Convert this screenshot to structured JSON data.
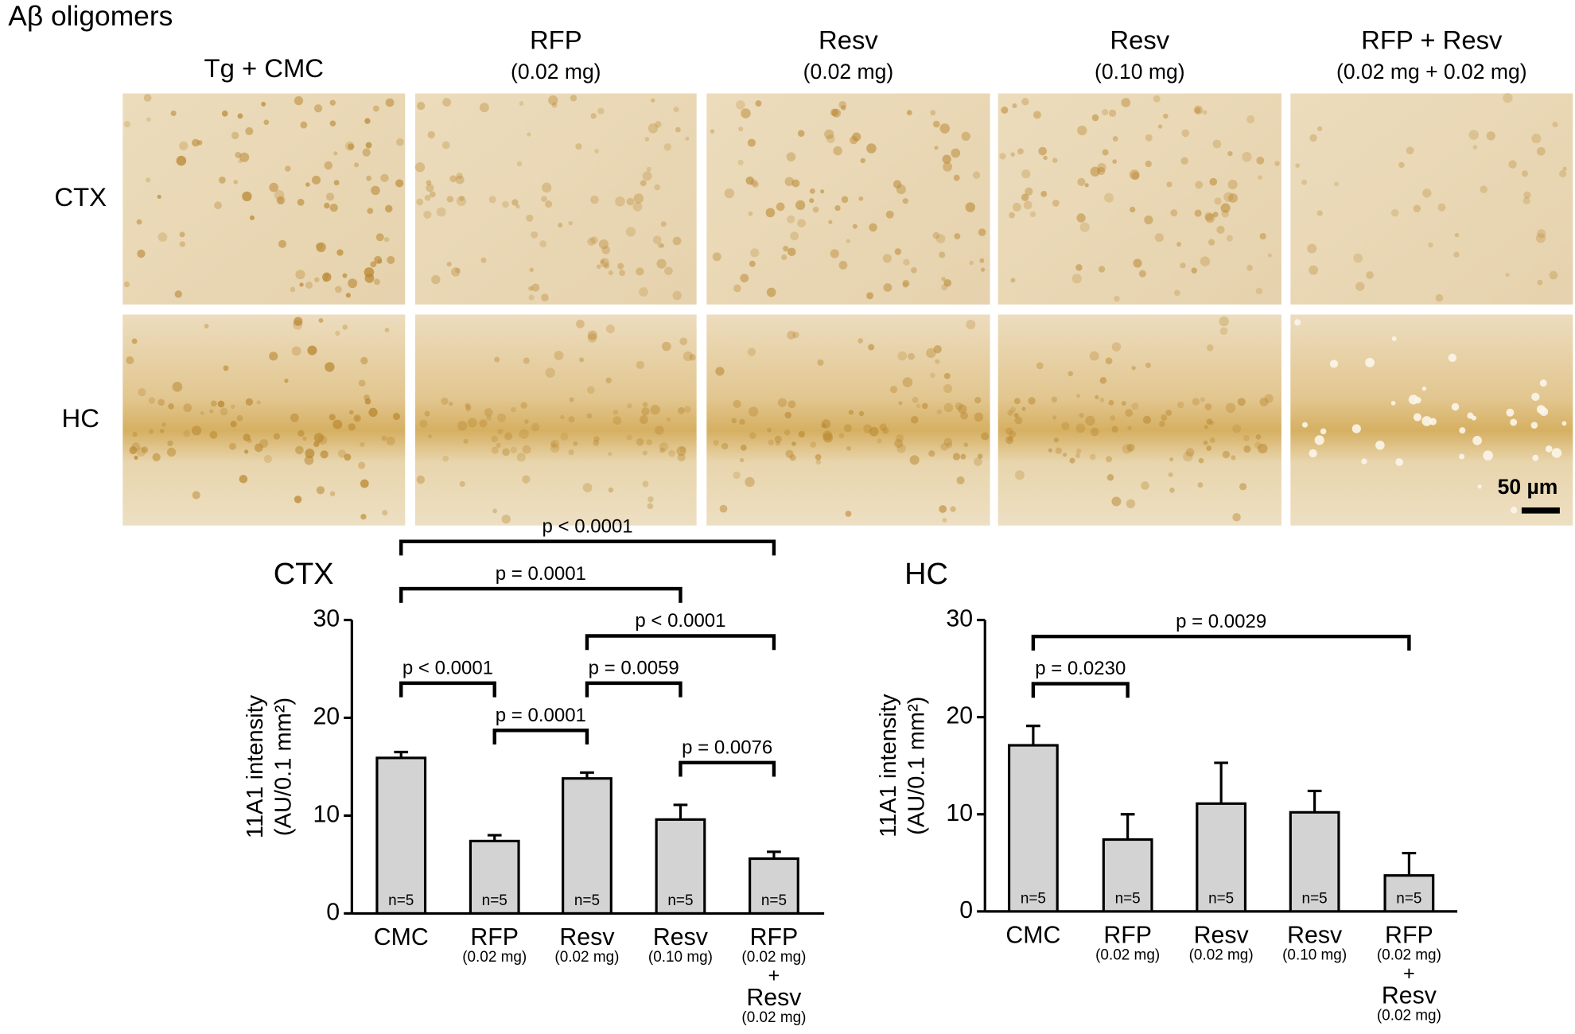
{
  "figure_title": "Aβ oligomers",
  "micrographs": {
    "columns": [
      [
        "Tg + CMC"
      ],
      [
        "RFP",
        "(0.02 mg)"
      ],
      [
        "Resv",
        "(0.02 mg)"
      ],
      [
        "Resv",
        "(0.10 mg)"
      ],
      [
        "RFP + Resv",
        "(0.02 mg + 0.02 mg)"
      ]
    ],
    "rows": [
      "CTX",
      "HC"
    ],
    "scale_bar": "50 µm"
  },
  "chart_data": [
    {
      "type": "bar",
      "title": "CTX",
      "ylabel": [
        "11A1 intensity",
        "(AU/0.1 mm²)"
      ],
      "categories": [
        [
          "CMC"
        ],
        [
          "RFP",
          "(0.02 mg)"
        ],
        [
          "Resv",
          "(0.02 mg)"
        ],
        [
          "Resv",
          "(0.10 mg)"
        ],
        [
          "RFP",
          "(0.02 mg)",
          "+",
          "Resv",
          "(0.02 mg)"
        ]
      ],
      "values": [
        15.9,
        7.4,
        13.8,
        9.6,
        5.6
      ],
      "errors": [
        0.6,
        0.6,
        0.6,
        1.5,
        0.7
      ],
      "n_labels": [
        "n=5",
        "n=5",
        "n=5",
        "n=5",
        "n=5"
      ],
      "color": "#d3d3d3",
      "ylim": [
        0,
        30
      ],
      "yticks": [
        0,
        10,
        20,
        30
      ],
      "comparisons": [
        {
          "pair": [
            3,
            4
          ],
          "label": "p = 0.0076"
        },
        {
          "pair": [
            1,
            2
          ],
          "label": "p = 0.0001"
        },
        {
          "pair": [
            2,
            3
          ],
          "label": "p = 0.0059"
        },
        {
          "pair": [
            0,
            1
          ],
          "label": "p < 0.0001"
        },
        {
          "pair": [
            2,
            4
          ],
          "label": "p < 0.0001"
        },
        {
          "pair": [
            0,
            3
          ],
          "label": "p = 0.0001"
        },
        {
          "pair": [
            0,
            4
          ],
          "label": "p < 0.0001"
        }
      ]
    },
    {
      "type": "bar",
      "title": "HC",
      "ylabel": [
        "11A1 intensity",
        "(AU/0.1 mm²)"
      ],
      "categories": [
        [
          "CMC"
        ],
        [
          "RFP",
          "(0.02 mg)"
        ],
        [
          "Resv",
          "(0.02 mg)"
        ],
        [
          "Resv",
          "(0.10 mg)"
        ],
        [
          "RFP",
          "(0.02 mg)",
          "+",
          "Resv",
          "(0.02 mg)"
        ]
      ],
      "values": [
        17.1,
        7.4,
        11.1,
        10.2,
        3.7
      ],
      "errors": [
        2.0,
        2.6,
        4.2,
        2.2,
        2.3
      ],
      "n_labels": [
        "n=5",
        "n=5",
        "n=5",
        "n=5",
        "n=5"
      ],
      "color": "#d3d3d3",
      "ylim": [
        0,
        30
      ],
      "yticks": [
        0,
        10,
        20,
        30
      ],
      "comparisons": [
        {
          "pair": [
            0,
            1
          ],
          "label": "p = 0.0230"
        },
        {
          "pair": [
            0,
            4
          ],
          "label": "p = 0.0029"
        }
      ]
    }
  ]
}
